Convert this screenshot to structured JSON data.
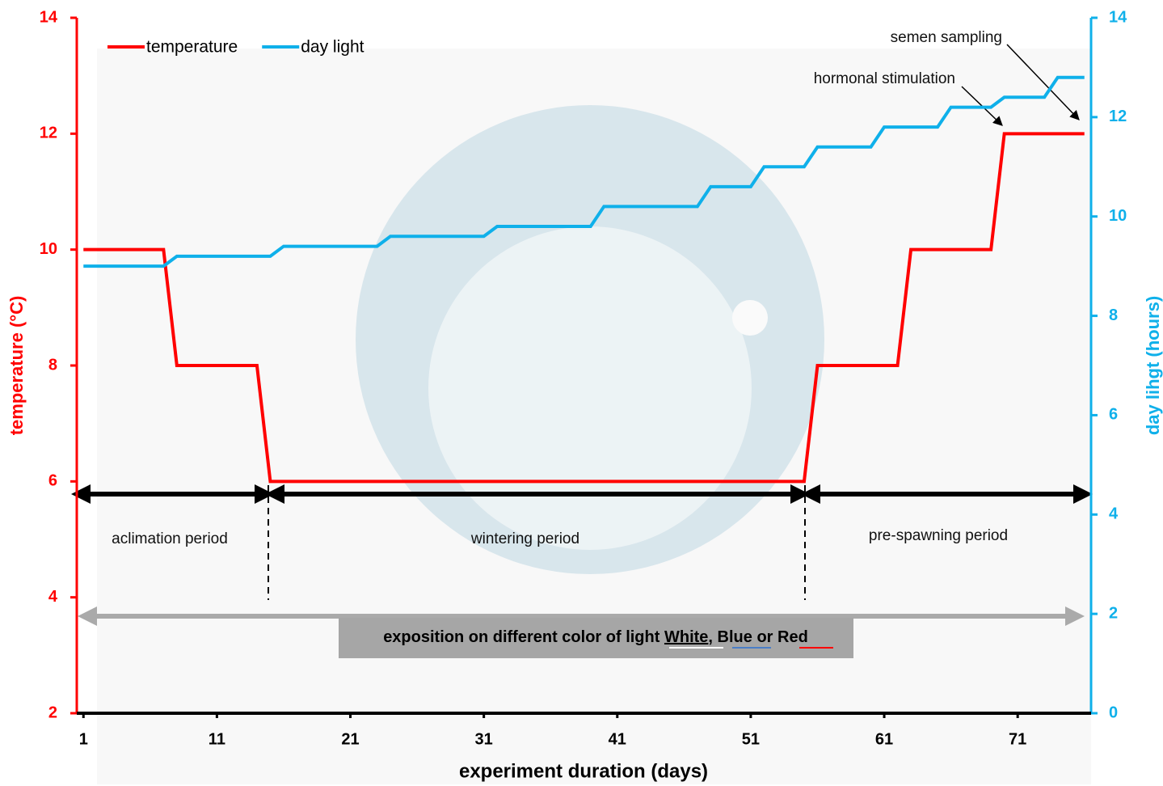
{
  "chart_data": {
    "type": "line",
    "xlabel": "experiment duration (days)",
    "ylabel": "temperature (°C)",
    "y2label": "day lihgt (hours)",
    "xlim": [
      0.5,
      76.5
    ],
    "xticks": [
      1,
      11,
      21,
      31,
      41,
      51,
      61,
      71
    ],
    "ylim": [
      2,
      14
    ],
    "yticks": [
      2,
      4,
      6,
      8,
      10,
      12,
      14
    ],
    "y2lim": [
      0,
      14
    ],
    "y2ticks": [
      0,
      2,
      4,
      6,
      8,
      10,
      12,
      14
    ],
    "legend": "top-left",
    "series": [
      {
        "name": "temperature",
        "color": "#ff0000",
        "x": [
          1,
          7,
          8,
          14,
          15,
          55,
          56,
          62,
          63,
          69,
          70,
          76
        ],
        "values": [
          10,
          10,
          8,
          8,
          6,
          6,
          8,
          8,
          10,
          10,
          12,
          12
        ]
      },
      {
        "name": "day light",
        "color": "#0fb0ea",
        "axis": "y2",
        "x": [
          1,
          7,
          8,
          15,
          16,
          23,
          24,
          31,
          32,
          39,
          40,
          47,
          48,
          51,
          52,
          55,
          56,
          60,
          61,
          65,
          66,
          69,
          70,
          73,
          74,
          76
        ],
        "values": [
          9.0,
          9.0,
          9.2,
          9.2,
          9.4,
          9.4,
          9.6,
          9.6,
          9.8,
          9.8,
          10.2,
          10.2,
          10.6,
          10.6,
          11.0,
          11.0,
          11.4,
          11.4,
          11.8,
          11.8,
          12.2,
          12.2,
          12.4,
          12.4,
          12.8,
          12.8
        ]
      }
    ],
    "annotations": {
      "semen": "semen sampling",
      "hormonal": "hormonal stimulation",
      "aclimation": "aclimation period",
      "wintering": "wintering period",
      "prespawning": "pre-spawning period",
      "exposition": [
        "exposition on different color of light",
        "White",
        ",",
        "Blue",
        "or",
        "Red"
      ]
    }
  }
}
